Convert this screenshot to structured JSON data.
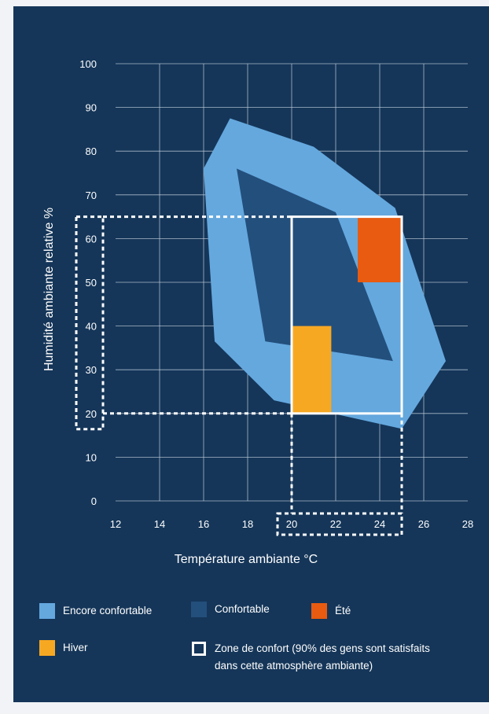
{
  "chart_data": {
    "type": "area",
    "xlabel": "Température ambiante °C",
    "ylabel": "Humidité ambiante relative %",
    "xlim": [
      12,
      28
    ],
    "ylim": [
      0,
      100
    ],
    "x_ticks": [
      12,
      14,
      16,
      18,
      20,
      22,
      24,
      26,
      28
    ],
    "y_ticks": [
      0,
      10,
      20,
      30,
      40,
      50,
      60,
      70,
      80,
      90,
      100
    ],
    "grid": true,
    "regions": [
      {
        "name": "Encore confortable",
        "color": "#64a8de",
        "polygon": [
          [
            17.2,
            87.5
          ],
          [
            21.0,
            81.0
          ],
          [
            24.7,
            67.0
          ],
          [
            27.0,
            32.0
          ],
          [
            25.0,
            16.5
          ],
          [
            19.2,
            23.0
          ],
          [
            16.5,
            36.5
          ],
          [
            16.0,
            76.0
          ]
        ]
      },
      {
        "name": "Confortable",
        "color": "#234f7c",
        "polygon": [
          [
            17.5,
            76.0
          ],
          [
            22.0,
            66.0
          ],
          [
            24.6,
            32.0
          ],
          [
            18.8,
            36.5
          ]
        ]
      },
      {
        "name": "Été",
        "color": "#e85b10",
        "rect": {
          "x": [
            23.0,
            25.0
          ],
          "y": [
            50,
            65
          ]
        }
      },
      {
        "name": "Hiver",
        "color": "#f7a823",
        "rect": {
          "x": [
            20.0,
            21.8
          ],
          "y": [
            20,
            40
          ]
        }
      },
      {
        "name": "Zone de confort",
        "color": "#ffffff",
        "rect": {
          "x": [
            20.0,
            25.0
          ],
          "y": [
            20,
            65
          ]
        }
      }
    ],
    "reference_ranges": {
      "x": [
        20,
        25
      ],
      "y": [
        20,
        65
      ]
    },
    "legend": [
      {
        "label": "Encore confortable",
        "color": "#64a8de",
        "kind": "fill"
      },
      {
        "label": "Confortable",
        "color": "#234f7c",
        "kind": "fill"
      },
      {
        "label": "Été",
        "color": "#e85b10",
        "kind": "fill"
      },
      {
        "label": "Hiver",
        "color": "#f7a823",
        "kind": "fill"
      },
      {
        "label": "Zone de confort (90% des gens sont satisfaits dans cette atmosphère ambiante)",
        "color": "#ffffff",
        "kind": "outline"
      }
    ]
  }
}
